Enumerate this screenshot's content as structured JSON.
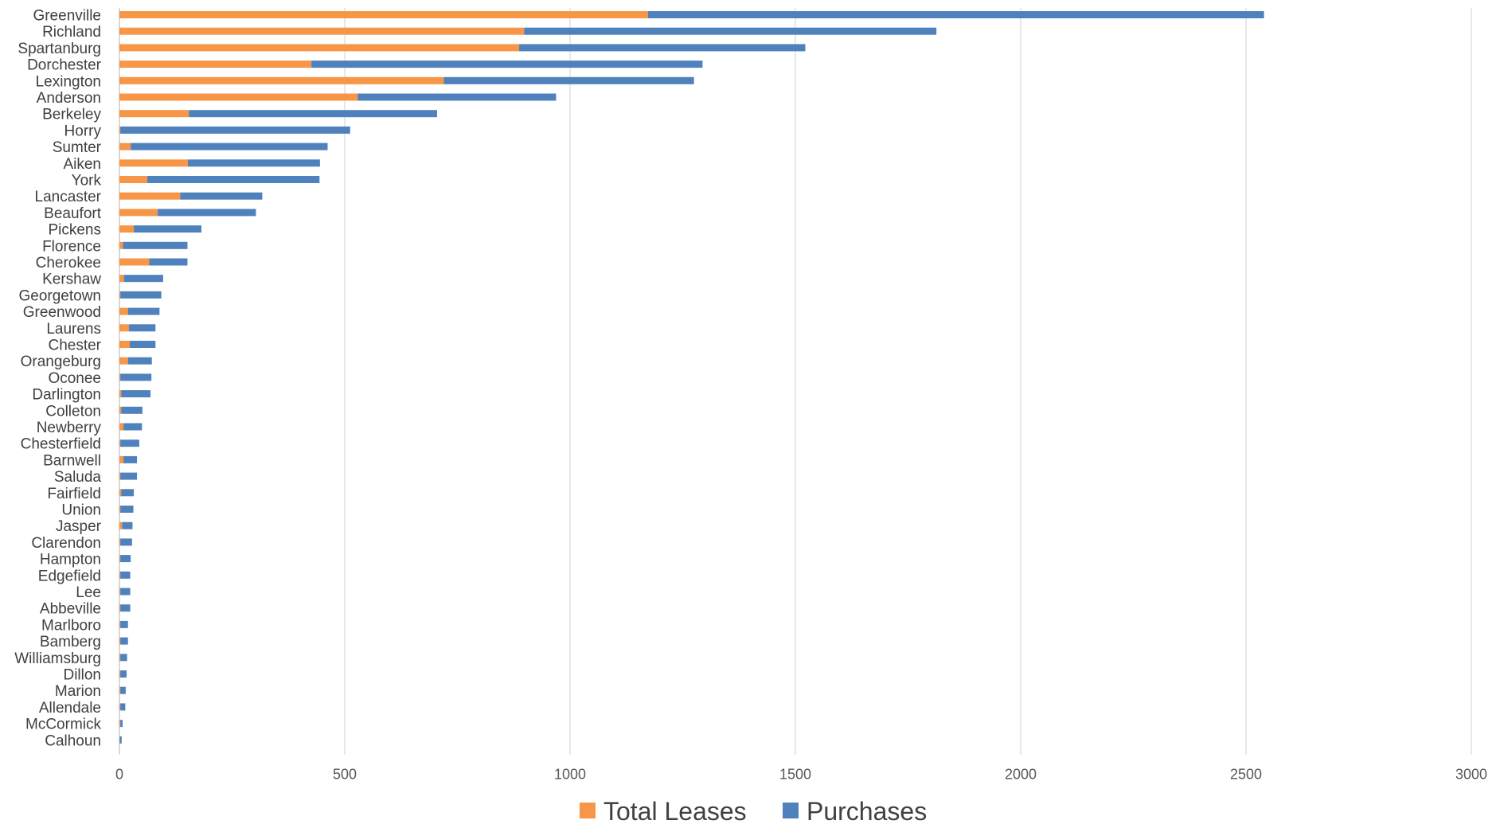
{
  "chart_data": {
    "type": "bar",
    "orientation": "horizontal",
    "stacked": true,
    "categories": [
      "Greenville",
      "Richland",
      "Spartanburg",
      "Dorchester",
      "Lexington",
      "Anderson",
      "Berkeley",
      "Horry",
      "Sumter",
      "Aiken",
      "York",
      "Lancaster",
      "Beaufort",
      "Pickens",
      "Florence",
      "Cherokee",
      "Kershaw",
      "Georgetown",
      "Greenwood",
      "Laurens",
      "Chester",
      "Orangeburg",
      "Oconee",
      "Darlington",
      "Colleton",
      "Newberry",
      "Chesterfield",
      "Barnwell",
      "Saluda",
      "Fairfield",
      "Union",
      "Jasper",
      "Clarendon",
      "Hampton",
      "Edgefield",
      "Lee",
      "Abbeville",
      "Marlboro",
      "Bamberg",
      "Williamsburg",
      "Dillon",
      "Marion",
      "Allendale",
      "McCormick",
      "Calhoun"
    ],
    "series": [
      {
        "name": "Total Leases",
        "color": "#F79646",
        "values": [
          1173,
          898,
          887,
          426,
          720,
          529,
          154,
          2,
          25,
          152,
          62,
          135,
          85,
          32,
          8,
          66,
          10,
          2,
          19,
          21,
          23,
          19,
          2,
          4,
          4,
          9,
          2,
          9,
          2,
          4,
          2,
          6,
          2,
          2,
          2,
          2,
          2,
          2,
          2,
          2,
          2,
          2,
          2,
          2,
          1
        ]
      },
      {
        "name": "Purchases",
        "color": "#4F81BD",
        "values": [
          1367,
          915,
          635,
          868,
          555,
          440,
          551,
          510,
          437,
          293,
          382,
          182,
          218,
          150,
          143,
          85,
          87,
          91,
          70,
          59,
          57,
          53,
          69,
          65,
          47,
          41,
          42,
          30,
          37,
          28,
          29,
          23,
          26,
          23,
          22,
          22,
          22,
          17,
          17,
          15,
          14,
          12,
          11,
          5,
          4
        ]
      }
    ],
    "xlim": [
      0,
      3000
    ],
    "xticks": [
      0,
      500,
      1000,
      1500,
      2000,
      2500,
      3000
    ],
    "grid": "vertical",
    "legend": "bottom",
    "title": "",
    "xlabel": "",
    "ylabel": ""
  }
}
